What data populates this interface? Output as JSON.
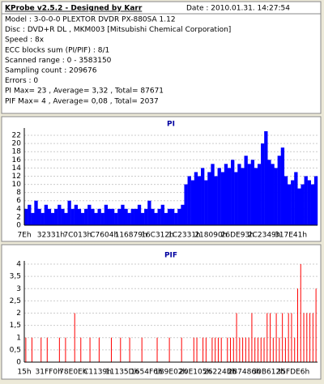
{
  "info": {
    "title": "KProbe v2.5.2 - Designed by Karr",
    "date": "Date : 2010.01.31. 14:27:54",
    "lines": [
      "Model : 3-0-0-0 PLEXTOR DVDR   PX-880SA  1.12",
      "Disc : DVD+R DL , MKM003 [Mitsubishi Chemical Corporation]",
      "Speed : 8x",
      "ECC blocks sum (PI/PIF) : 8/1",
      "Scanned range : 0 - 3583150",
      "Sampling count : 209676",
      "Errors : 0",
      "PI Max= 23 , Average= 3,32 , Total= 87671",
      "PIF Max= 4 , Average= 0,08 , Total= 2037"
    ]
  },
  "chart_data": [
    {
      "type": "bar",
      "title": "PI",
      "color": "#0000ff",
      "grid": true,
      "ylim": [
        0,
        23
      ],
      "yticks": [
        0,
        2,
        4,
        6,
        8,
        10,
        12,
        14,
        16,
        18,
        20,
        22
      ],
      "categories": [
        "7Eh",
        null,
        null,
        null,
        null,
        null,
        null,
        null,
        "32331h",
        null,
        null,
        null,
        null,
        null,
        null,
        null,
        "7C013h",
        null,
        null,
        null,
        null,
        null,
        null,
        null,
        "C7604h",
        null,
        null,
        null,
        null,
        null,
        null,
        null,
        "116879h",
        null,
        null,
        null,
        null,
        null,
        null,
        null,
        "16C312h",
        null,
        null,
        null,
        null,
        null,
        null,
        null,
        "1C2331h",
        null,
        null,
        null,
        null,
        null,
        null,
        null,
        "218090h",
        null,
        null,
        null,
        null,
        null,
        null,
        null,
        "26DE93h",
        null,
        null,
        null,
        null,
        null,
        null,
        null,
        "2C2349h",
        null,
        null,
        null,
        null,
        null,
        null,
        null,
        "317E41h",
        null,
        null,
        null,
        null,
        null,
        null,
        null
      ],
      "values": [
        4,
        5,
        3,
        6,
        4,
        3,
        5,
        4,
        3,
        4,
        5,
        4,
        3,
        6,
        4,
        5,
        4,
        3,
        4,
        5,
        4,
        3,
        4,
        3,
        5,
        4,
        4,
        3,
        4,
        5,
        4,
        3,
        4,
        4,
        5,
        3,
        4,
        6,
        4,
        3,
        4,
        5,
        3,
        4,
        4,
        3,
        4,
        5,
        10,
        12,
        11,
        13,
        12,
        14,
        11,
        13,
        15,
        12,
        14,
        13,
        15,
        14,
        16,
        13,
        15,
        14,
        17,
        15,
        16,
        14,
        15,
        20,
        23,
        16,
        15,
        14,
        17,
        19,
        12,
        10,
        11,
        13,
        9,
        10,
        12,
        11,
        10,
        12
      ]
    },
    {
      "type": "spike",
      "title": "PIF",
      "color": "#ff0000",
      "grid": true,
      "ylim": [
        0,
        4
      ],
      "yticks": [
        0,
        {
          "value": 0.5,
          "label": "0,5"
        },
        1,
        {
          "value": 1.5,
          "label": "1,5"
        },
        2,
        {
          "value": 2.5,
          "label": "2,5"
        },
        3,
        {
          "value": 3.5,
          "label": "3,5"
        },
        4
      ],
      "categories": [
        "15h",
        null,
        null,
        null,
        null,
        null,
        null,
        null,
        "31FF0h",
        null,
        null,
        null,
        null,
        null,
        null,
        null,
        "78E0Eh",
        null,
        null,
        null,
        null,
        null,
        null,
        null,
        "C1139h",
        null,
        null,
        null,
        null,
        null,
        null,
        null,
        "11135Dh",
        null,
        null,
        null,
        null,
        null,
        null,
        null,
        "1654F6h",
        null,
        null,
        null,
        null,
        null,
        null,
        null,
        "1B9E02h",
        null,
        null,
        null,
        null,
        null,
        null,
        null,
        "20E105h",
        null,
        null,
        null,
        null,
        null,
        null,
        null,
        "26224Bh",
        null,
        null,
        null,
        null,
        null,
        null,
        null,
        "2B7486h",
        null,
        null,
        null,
        null,
        null,
        null,
        null,
        "30B612h",
        null,
        null,
        null,
        null,
        null,
        null,
        null,
        "35FDE6h",
        null,
        null,
        null,
        null,
        null,
        null,
        null
      ],
      "values": [
        1,
        0,
        1,
        0,
        0,
        1,
        0,
        1,
        0,
        0,
        0,
        1,
        0,
        1,
        0,
        0,
        2,
        0,
        1,
        0,
        0,
        1,
        0,
        0,
        1,
        0,
        0,
        0,
        1,
        0,
        0,
        1,
        0,
        0,
        1,
        0,
        0,
        0,
        1,
        0,
        0,
        0,
        0,
        1,
        0,
        0,
        0,
        1,
        0,
        0,
        0,
        1,
        0,
        0,
        0,
        1,
        1,
        0,
        1,
        1,
        0,
        1,
        1,
        1,
        1,
        0,
        1,
        1,
        1,
        2,
        1,
        1,
        1,
        1,
        2,
        1,
        1,
        1,
        1,
        2,
        2,
        1,
        2,
        1,
        2,
        1,
        2,
        2,
        1,
        3,
        4,
        2,
        2,
        2,
        2,
        3
      ]
    }
  ]
}
